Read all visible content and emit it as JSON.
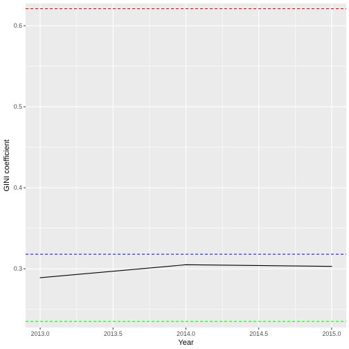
{
  "chart_data": {
    "type": "line",
    "title": "",
    "xlabel": "Year",
    "ylabel": "GINI coefficient",
    "xlim": [
      2012.9,
      2015.1
    ],
    "ylim": [
      0.2275,
      0.6275
    ],
    "x_ticks": [
      2013.0,
      2013.5,
      2014.0,
      2014.5,
      2015.0
    ],
    "x_tick_labels": [
      "2013.0",
      "2013.5",
      "2014.0",
      "2014.5",
      "2015.0"
    ],
    "y_ticks": [
      0.3,
      0.4,
      0.5,
      0.6
    ],
    "y_tick_labels": [
      "0.3",
      "0.4",
      "0.5",
      "0.6"
    ],
    "grid": true,
    "legend": "none",
    "series": [
      {
        "x": [
          2013,
          2014,
          2015
        ],
        "y": [
          0.289,
          0.305,
          0.303
        ],
        "color": "#000000"
      }
    ],
    "reference_lines": [
      {
        "y": 0.621,
        "color": "#ff0000",
        "style": "dashed"
      },
      {
        "y": 0.318,
        "color": "#0000ff",
        "style": "dashed"
      },
      {
        "y": 0.235,
        "color": "#00ff00",
        "style": "dashed"
      }
    ],
    "panel_background": "#ebebeb",
    "grid_color": "#ffffff"
  }
}
